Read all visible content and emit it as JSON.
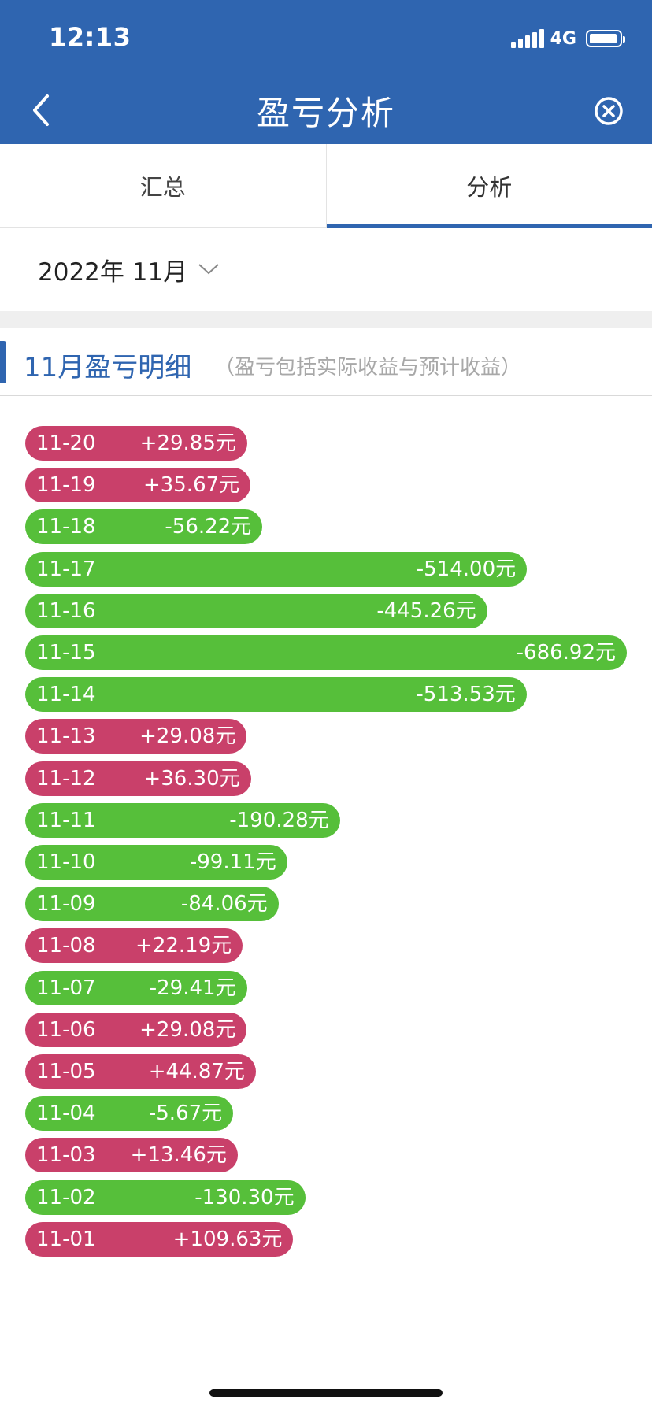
{
  "status": {
    "time": "12:13",
    "network": "4G"
  },
  "nav": {
    "title": "盈亏分析"
  },
  "tabs": [
    {
      "label": "汇总"
    },
    {
      "label": "分析"
    }
  ],
  "date_selector": {
    "value": "2022年 11月"
  },
  "section": {
    "title": "11月盈亏明细",
    "note": "（盈亏包括实际收益与预计收益）"
  },
  "colors": {
    "header": "#2f65b0",
    "profit": "#c9406a",
    "loss": "#56bf3a"
  },
  "chart_data": {
    "type": "bar",
    "orientation": "horizontal",
    "unit": "元",
    "categories": [
      "11-20",
      "11-19",
      "11-18",
      "11-17",
      "11-16",
      "11-15",
      "11-14",
      "11-13",
      "11-12",
      "11-11",
      "11-10",
      "11-09",
      "11-08",
      "11-07",
      "11-06",
      "11-05",
      "11-04",
      "11-03",
      "11-02",
      "11-01"
    ],
    "values": [
      29.85,
      35.67,
      -56.22,
      -514.0,
      -445.26,
      -686.92,
      -513.53,
      29.08,
      36.3,
      -190.28,
      -99.11,
      -84.06,
      22.19,
      -29.41,
      29.08,
      44.87,
      -5.67,
      13.46,
      -130.3,
      109.63
    ],
    "labels": [
      "+29.85元",
      "+35.67元",
      "-56.22元",
      "-514.00元",
      "-445.26元",
      "-686.92元",
      "-513.53元",
      "+29.08元",
      "+36.30元",
      "-190.28元",
      "-99.11元",
      "-84.06元",
      "+22.19元",
      "-29.41元",
      "+29.08元",
      "+44.87元",
      "-5.67元",
      "+13.46元",
      "-130.30元",
      "+109.63元"
    ]
  }
}
